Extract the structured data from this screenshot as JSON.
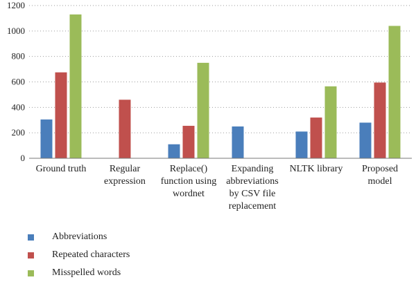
{
  "chart_data": {
    "type": "bar",
    "categories": [
      [
        "Ground truth"
      ],
      [
        "Regular",
        "expression"
      ],
      [
        "Replace()",
        "function using",
        "wordnet"
      ],
      [
        "Expanding",
        "abbreviations",
        "by CSV file",
        "replacement"
      ],
      [
        "NLTK library"
      ],
      [
        "Proposed",
        "model"
      ]
    ],
    "series": [
      {
        "name": "Abbreviations",
        "color": "#4a7ebb",
        "values": [
          305,
          0,
          110,
          250,
          210,
          280
        ]
      },
      {
        "name": "Repeated characters",
        "color": "#c0504d",
        "values": [
          675,
          460,
          255,
          0,
          320,
          595
        ]
      },
      {
        "name": "Misspelled words",
        "color": "#9bbb59",
        "values": [
          1130,
          0,
          750,
          0,
          565,
          1040
        ]
      }
    ],
    "ylim": [
      0,
      1200
    ],
    "yticks": [
      "0",
      "200",
      "400",
      "600",
      "800",
      "1000",
      "1200"
    ],
    "grid": "dotted-horizontal",
    "legend_position": "bottom-left",
    "title": "",
    "xlabel": "",
    "ylabel": ""
  }
}
